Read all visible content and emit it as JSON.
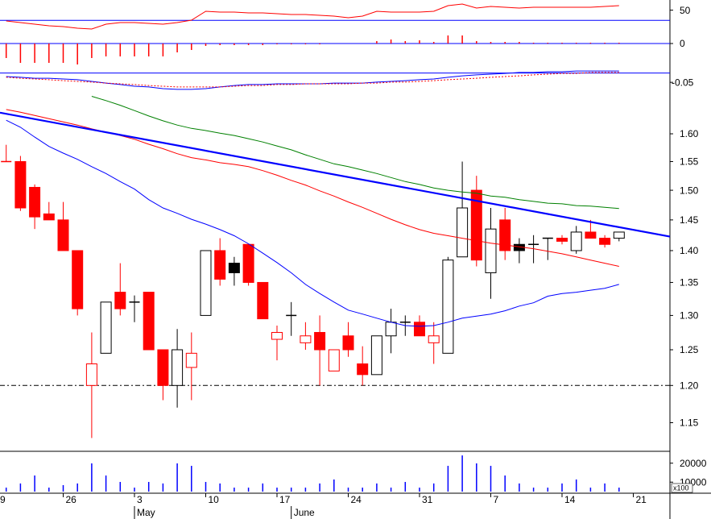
{
  "chart_data": [
    {
      "type": "line",
      "ylim": [
        15,
        65
      ],
      "yticks": [
        50
      ],
      "hline": 35,
      "hline_color": "#0000ff",
      "series": [
        {
          "color": "#ff0000",
          "values": [
            null,
            34.0,
            31.7,
            29.3,
            26.9,
            25.7,
            23.3,
            22.1,
            29.3,
            31.7,
            31.7,
            30.5,
            29.3,
            31.7,
            35.2,
            48.3,
            47.1,
            47.1,
            46.0,
            46.0,
            44.8,
            43.6,
            43.6,
            42.4,
            41.2,
            38.8,
            41.2,
            48.3,
            47.1,
            47.1,
            47.1,
            48.3,
            56.7,
            59.0,
            53.1,
            55.5,
            54.3,
            53.1,
            54.3,
            54.3,
            54.3,
            54.3,
            54.3,
            55.5,
            56.7,
            null
          ]
        }
      ]
    },
    {
      "type": "bar",
      "ylim": [
        -0.034,
        0.016
      ],
      "yticks": [
        0
      ],
      "hline": 0,
      "hline_color": "#0000ff",
      "color": "#ff0000",
      "values": [
        null,
        -0.018,
        -0.024,
        -0.024,
        -0.024,
        -0.024,
        -0.026,
        -0.018,
        -0.016,
        -0.016,
        -0.016,
        -0.016,
        -0.016,
        -0.011,
        -0.008,
        -0.003,
        -0.002,
        -0.002,
        -0.002,
        -0.002,
        -0.001,
        -0.001,
        -0.001,
        -0.001,
        0,
        0,
        0,
        0.003,
        0.005,
        0.003,
        0.004,
        0.002,
        0.01,
        0.01,
        0.003,
        0.002,
        0.002,
        0.002,
        0.001,
        0.001,
        0.001,
        0.001,
        0.001,
        0.001,
        0.001,
        null
      ]
    },
    {
      "type": "line",
      "ylim": [
        -0.11,
        0.02
      ],
      "yticks": [
        -0.05
      ],
      "hline": 0,
      "hline_color": "#0000ff",
      "series": [
        {
          "color": "#0000ff",
          "values": [
            null,
            -0.019,
            -0.023,
            -0.028,
            -0.028,
            -0.032,
            -0.036,
            -0.045,
            -0.054,
            -0.062,
            -0.071,
            -0.075,
            -0.084,
            -0.088,
            -0.088,
            -0.084,
            -0.075,
            -0.067,
            -0.062,
            -0.062,
            -0.058,
            -0.058,
            -0.058,
            -0.058,
            -0.054,
            -0.054,
            -0.054,
            -0.049,
            -0.045,
            -0.041,
            -0.036,
            -0.032,
            -0.023,
            -0.015,
            -0.01,
            -0.006,
            -0.002,
            0.003,
            0.003,
            0.007,
            0.007,
            0.011,
            0.011,
            0.011,
            0.011,
            null
          ]
        },
        {
          "color": "#ff0000",
          "dashed": true,
          "values": [
            null,
            -0.023,
            -0.028,
            -0.032,
            -0.036,
            -0.041,
            -0.045,
            -0.049,
            -0.054,
            -0.058,
            -0.062,
            -0.067,
            -0.071,
            -0.075,
            -0.075,
            -0.075,
            -0.075,
            -0.071,
            -0.067,
            -0.067,
            -0.062,
            -0.062,
            -0.058,
            -0.058,
            -0.058,
            -0.058,
            -0.054,
            -0.054,
            -0.049,
            -0.049,
            -0.045,
            -0.041,
            -0.036,
            -0.032,
            -0.028,
            -0.023,
            -0.019,
            -0.015,
            -0.01,
            -0.006,
            -0.002,
            -0.002,
            0.003,
            0.003,
            0.003,
            null
          ]
        }
      ]
    },
    {
      "type": "candlestick",
      "log_scale": true,
      "ylim": [
        1.113,
        1.677
      ],
      "yticks": [
        {
          "value": 1.6,
          "label": "1.60"
        },
        1.55,
        {
          "value": 1.5,
          "label": "1.50"
        },
        1.45,
        {
          "value": 1.4,
          "label": "1.40"
        },
        1.35,
        {
          "value": 1.3,
          "label": "1.30"
        },
        1.25,
        {
          "value": 1.2,
          "label": "1.20"
        },
        1.15
      ],
      "hline": 1.2,
      "hline_color": "#000000",
      "open": [
        null,
        1.55,
        1.55,
        1.505,
        1.46,
        1.45,
        1.4,
        1.2,
        1.245,
        1.335,
        1.32,
        1.335,
        1.25,
        1.2,
        1.225,
        1.3,
        1.4,
        1.38,
        1.41,
        1.35,
        1.265,
        1.3,
        1.26,
        1.275,
        1.22,
        1.27,
        1.23,
        1.215,
        1.27,
        1.29,
        1.29,
        1.26,
        1.245,
        1.39,
        1.5,
        1.365,
        1.45,
        1.41,
        1.41,
        1.42,
        1.42,
        1.4,
        1.43,
        1.42,
        1.42,
        null
      ],
      "high": [
        null,
        1.58,
        1.56,
        1.51,
        1.48,
        1.48,
        1.4,
        1.275,
        1.32,
        1.38,
        1.33,
        1.335,
        1.25,
        1.28,
        1.275,
        1.4,
        1.42,
        1.39,
        1.41,
        1.35,
        1.285,
        1.32,
        1.29,
        1.3,
        1.25,
        1.29,
        1.255,
        1.27,
        1.31,
        1.3,
        1.3,
        1.29,
        1.39,
        1.55,
        1.525,
        1.47,
        1.47,
        1.42,
        1.425,
        1.42,
        1.425,
        1.44,
        1.45,
        1.425,
        1.43,
        null
      ],
      "low": [
        null,
        1.55,
        1.465,
        1.435,
        1.45,
        1.4,
        1.3,
        1.13,
        1.245,
        1.3,
        1.29,
        1.25,
        1.18,
        1.17,
        1.18,
        1.3,
        1.345,
        1.345,
        1.345,
        1.295,
        1.235,
        1.27,
        1.25,
        1.2,
        1.22,
        1.24,
        1.2,
        1.215,
        1.245,
        1.27,
        1.27,
        1.23,
        1.245,
        1.39,
        1.375,
        1.325,
        1.385,
        1.38,
        1.38,
        1.385,
        1.41,
        1.395,
        1.42,
        1.405,
        1.415,
        null
      ],
      "close": [
        null,
        1.55,
        1.47,
        1.455,
        1.45,
        1.4,
        1.31,
        1.23,
        1.32,
        1.31,
        1.32,
        1.25,
        1.2,
        1.25,
        1.245,
        1.4,
        1.355,
        1.365,
        1.35,
        1.295,
        1.275,
        1.3,
        1.27,
        1.25,
        1.25,
        1.25,
        1.215,
        1.27,
        1.29,
        1.29,
        1.27,
        1.27,
        1.385,
        1.47,
        1.385,
        1.435,
        1.4,
        1.4,
        1.41,
        1.42,
        1.415,
        1.43,
        1.42,
        1.41,
        1.43,
        null
      ],
      "fills": [
        null,
        "#ff0000",
        "#ff0000",
        "#ff0000",
        "#ff0000",
        "#ff0000",
        "#ff0000",
        "#ffffff",
        "#ffffff",
        "#ff0000",
        "#000000",
        "#ff0000",
        "#ff0000",
        "#ffffff",
        "#ffffff",
        "#ffffff",
        "#ff0000",
        "#000000",
        "#ff0000",
        "#ff0000",
        "#ffffff",
        "#000000",
        "#ffffff",
        "#ff0000",
        "#ffffff",
        "#ff0000",
        "#ff0000",
        "#ffffff",
        "#ffffff",
        "#000000",
        "#ff0000",
        "#ffffff",
        "#ffffff",
        "#ffffff",
        "#ff0000",
        "#ffffff",
        "#ff0000",
        "#000000",
        "#000000",
        "#000000",
        "#ff0000",
        "#ffffff",
        "#ff0000",
        "#ff0000",
        "#ffffff",
        null
      ],
      "outlines": [
        null,
        "#ff0000",
        "#ff0000",
        "#ff0000",
        "#ff0000",
        "#ff0000",
        "#ff0000",
        "#ff0000",
        "#000000",
        "#ff0000",
        "#000000",
        "#ff0000",
        "#ff0000",
        "#000000",
        "#ff0000",
        "#000000",
        "#ff0000",
        "#000000",
        "#ff0000",
        "#ff0000",
        "#ff0000",
        "#000000",
        "#ff0000",
        "#ff0000",
        "#ff0000",
        "#ff0000",
        "#ff0000",
        "#000000",
        "#000000",
        "#000000",
        "#ff0000",
        "#ff0000",
        "#000000",
        "#000000",
        "#ff0000",
        "#000000",
        "#ff0000",
        "#000000",
        "#000000",
        "#000000",
        "#ff0000",
        "#000000",
        "#ff0000",
        "#ff0000",
        "#000000",
        null
      ],
      "series": [
        {
          "color": "#0000ff",
          "values": [
            null,
            1.625,
            1.612,
            1.594,
            1.577,
            1.565,
            1.554,
            1.541,
            1.529,
            1.515,
            1.502,
            1.484,
            1.47,
            1.461,
            1.451,
            1.443,
            1.434,
            1.424,
            1.411,
            1.396,
            1.381,
            1.365,
            1.347,
            1.333,
            1.32,
            1.308,
            1.302,
            1.296,
            1.29,
            1.285,
            1.284,
            1.285,
            1.29,
            1.296,
            1.299,
            1.302,
            1.307,
            1.314,
            1.319,
            1.329,
            1.333,
            1.335,
            1.338,
            1.341,
            1.347,
            null
          ]
        },
        {
          "color": "#ff0000",
          "values": [
            null,
            1.645,
            1.64,
            1.634,
            1.628,
            1.622,
            1.616,
            1.609,
            1.603,
            1.597,
            1.59,
            1.581,
            1.573,
            1.564,
            1.557,
            1.553,
            1.548,
            1.545,
            1.541,
            1.534,
            1.526,
            1.517,
            1.509,
            1.499,
            1.49,
            1.48,
            1.471,
            1.461,
            1.451,
            1.442,
            1.434,
            1.428,
            1.424,
            1.42,
            1.416,
            1.412,
            1.409,
            1.406,
            1.403,
            1.399,
            1.395,
            1.39,
            1.385,
            1.38,
            1.375,
            null
          ]
        },
        {
          "color": "#008000",
          "values": [
            null,
            null,
            null,
            null,
            null,
            null,
            null,
            1.67,
            1.662,
            1.653,
            1.643,
            1.633,
            1.624,
            1.616,
            1.61,
            1.606,
            1.601,
            1.597,
            1.591,
            1.585,
            1.578,
            1.571,
            1.562,
            1.554,
            1.546,
            1.541,
            1.535,
            1.529,
            1.522,
            1.515,
            1.51,
            1.504,
            1.5,
            1.497,
            1.495,
            1.49,
            1.488,
            1.484,
            1.481,
            1.478,
            1.477,
            1.474,
            1.473,
            1.471,
            1.469,
            null
          ]
        }
      ],
      "trendline": {
        "color": "#0000ff",
        "start": [
          1,
          1.637
        ],
        "end": [
          44,
          1.438
        ]
      }
    },
    {
      "type": "bar",
      "ylim": [
        5000,
        25000
      ],
      "yticks": [
        10000,
        20000
      ],
      "unit_label": "x100",
      "color": "#0000ff",
      "values": [
        null,
        7100,
        9300,
        13500,
        7100,
        8400,
        9300,
        19900,
        13500,
        10100,
        7100,
        10100,
        9300,
        19900,
        18600,
        10100,
        9300,
        7100,
        7100,
        9300,
        7100,
        7100,
        7100,
        9300,
        11400,
        7100,
        7100,
        9300,
        7100,
        10100,
        7100,
        9300,
        18600,
        24100,
        19900,
        18600,
        13500,
        9300,
        7100,
        7100,
        9300,
        11400,
        7100,
        9300,
        7100,
        null
      ],
      "categories": [
        "9",
        null,
        null,
        null,
        null,
        "26",
        null,
        null,
        null,
        null,
        "3",
        null,
        null,
        null,
        null,
        "10",
        null,
        null,
        null,
        null,
        "17",
        null,
        null,
        null,
        null,
        "24",
        null,
        null,
        null,
        null,
        "31",
        null,
        null,
        null,
        null,
        "7",
        null,
        null,
        null,
        null,
        "14",
        null,
        null,
        null,
        null,
        "21"
      ],
      "months": [
        null,
        null,
        null,
        null,
        null,
        null,
        null,
        null,
        null,
        null,
        "May",
        null,
        null,
        null,
        null,
        null,
        null,
        null,
        null,
        null,
        null,
        "June",
        null,
        null,
        null,
        null,
        null,
        null,
        null,
        null,
        null,
        null,
        null,
        null,
        null,
        null,
        null,
        null,
        null,
        null,
        null,
        null,
        null,
        null,
        null,
        null
      ]
    }
  ]
}
